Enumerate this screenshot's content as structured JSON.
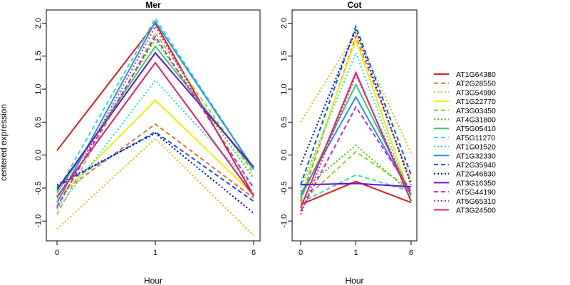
{
  "chart_data": [
    {
      "type": "line",
      "title": "Mer",
      "xlabel": "Hour",
      "ylabel": "centered expression",
      "x": [
        "0",
        "1",
        "6"
      ],
      "ylim": [
        -1.3,
        2.2
      ],
      "yticks": [
        -1.0,
        -0.5,
        0.0,
        0.5,
        1.0,
        1.5,
        2.0
      ],
      "series": [
        {
          "name": "AT1G64380",
          "values": [
            0.07,
            2.0,
            -0.62
          ]
        },
        {
          "name": "AT2G28550",
          "values": [
            -0.62,
            0.47,
            -0.65
          ]
        },
        {
          "name": "AT3G54990",
          "values": [
            -1.12,
            0.25,
            -1.22
          ]
        },
        {
          "name": "AT1G22770",
          "values": [
            -0.67,
            0.83,
            -0.6
          ]
        },
        {
          "name": "AT3G03450",
          "values": [
            -0.9,
            1.85,
            -0.28
          ]
        },
        {
          "name": "AT4G31800",
          "values": [
            -0.65,
            1.75,
            -0.35
          ]
        },
        {
          "name": "AT5G05410",
          "values": [
            -0.57,
            1.65,
            -0.22
          ]
        },
        {
          "name": "AT5G11270",
          "values": [
            -0.55,
            2.07,
            -0.2
          ]
        },
        {
          "name": "AT1G01520",
          "values": [
            -0.82,
            1.13,
            -0.48
          ]
        },
        {
          "name": "AT1G32330",
          "values": [
            -0.72,
            2.02,
            -0.2
          ]
        },
        {
          "name": "AT2G35940",
          "values": [
            -0.48,
            0.35,
            -0.7
          ]
        },
        {
          "name": "AT2G46830",
          "values": [
            -0.45,
            0.33,
            -0.88
          ]
        },
        {
          "name": "AT3G16350",
          "values": [
            -0.52,
            1.55,
            -0.18
          ]
        },
        {
          "name": "AT5G44190",
          "values": [
            -0.78,
            1.8,
            -0.5
          ]
        },
        {
          "name": "AT5G65310",
          "values": [
            -0.8,
            1.95,
            -0.6
          ]
        },
        {
          "name": "AT3G24500",
          "values": [
            -0.63,
            1.4,
            -0.62
          ]
        }
      ]
    },
    {
      "type": "line",
      "title": "Cot",
      "xlabel": "Hour",
      "x": [
        "0",
        "1",
        "6"
      ],
      "ylim": [
        -1.3,
        2.2
      ],
      "yticks": [
        -1.0,
        -0.5,
        0.0,
        0.5,
        1.0,
        1.5,
        2.0
      ],
      "series": [
        {
          "name": "AT1G64380",
          "values": [
            -0.75,
            -0.4,
            -0.72
          ]
        },
        {
          "name": "AT2G28550",
          "values": [
            -0.7,
            1.8,
            -0.4
          ]
        },
        {
          "name": "AT3G54990",
          "values": [
            0.5,
            1.85,
            0.03
          ]
        },
        {
          "name": "AT1G22770",
          "values": [
            -0.62,
            1.75,
            -0.65
          ]
        },
        {
          "name": "AT3G03450",
          "values": [
            -0.72,
            0.05,
            -0.52
          ]
        },
        {
          "name": "AT4G31800",
          "values": [
            -0.55,
            0.15,
            -0.58
          ]
        },
        {
          "name": "AT5G05410",
          "values": [
            -0.65,
            1.07,
            -0.6
          ]
        },
        {
          "name": "AT5G11270",
          "values": [
            -0.72,
            -0.3,
            -0.55
          ]
        },
        {
          "name": "AT1G01520",
          "values": [
            -0.5,
            1.55,
            -0.68
          ]
        },
        {
          "name": "AT1G32330",
          "values": [
            -0.6,
            0.88,
            -0.6
          ]
        },
        {
          "name": "AT2G35940",
          "values": [
            -0.45,
            1.95,
            -0.3
          ]
        },
        {
          "name": "AT2G46830",
          "values": [
            -0.15,
            1.9,
            -0.45
          ]
        },
        {
          "name": "AT3G16350",
          "values": [
            -0.45,
            -0.43,
            -0.48
          ]
        },
        {
          "name": "AT5G44190",
          "values": [
            -0.85,
            0.73,
            -0.55
          ]
        },
        {
          "name": "AT5G65310",
          "values": [
            -0.9,
            1.22,
            -0.62
          ]
        },
        {
          "name": "AT3G24500",
          "values": [
            -0.8,
            1.25,
            -0.7
          ]
        }
      ]
    }
  ],
  "legend": {
    "placement": "right",
    "items": [
      {
        "label": "AT1G64380",
        "color": "#e41a1c",
        "dash": "solid"
      },
      {
        "label": "AT2G28550",
        "color": "#f07020",
        "dash": "dashed"
      },
      {
        "label": "AT3G54990",
        "color": "#f2b400",
        "dash": "dotted"
      },
      {
        "label": "AT1G22770",
        "color": "#f0f000",
        "dash": "solid"
      },
      {
        "label": "AT3G03450",
        "color": "#9acd32",
        "dash": "dashed"
      },
      {
        "label": "AT4G31800",
        "color": "#33cc00",
        "dash": "dotted"
      },
      {
        "label": "AT5G05410",
        "color": "#33cc66",
        "dash": "solid"
      },
      {
        "label": "AT5G11270",
        "color": "#33ddaa",
        "dash": "dashed"
      },
      {
        "label": "AT1G01520",
        "color": "#22dddd",
        "dash": "dotted"
      },
      {
        "label": "AT1G32330",
        "color": "#1e90ff",
        "dash": "solid"
      },
      {
        "label": "AT2G35940",
        "color": "#0055ee",
        "dash": "dashed"
      },
      {
        "label": "AT2G46830",
        "color": "#0000cc",
        "dash": "dotted"
      },
      {
        "label": "AT3G16350",
        "color": "#6a0dd8",
        "dash": "solid"
      },
      {
        "label": "AT5G44190",
        "color": "#c026d3",
        "dash": "dashed"
      },
      {
        "label": "AT5G65310",
        "color": "#e0208a",
        "dash": "dotted"
      },
      {
        "label": "AT3G24500",
        "color": "#e0206a",
        "dash": "solid"
      }
    ]
  }
}
